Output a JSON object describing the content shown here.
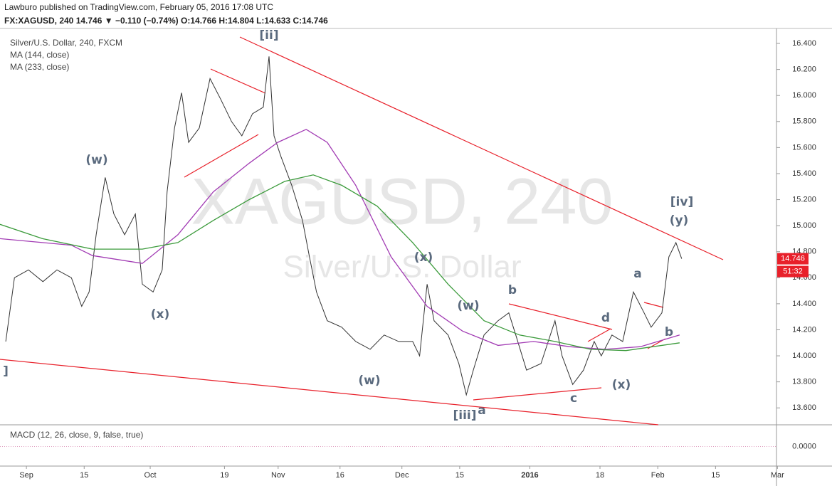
{
  "header": {
    "publisher": "Lawburo published on TradingView.com, February 05, 2016 17:08 UTC",
    "symbol_line": "FX:XAGUSD, 240  14.746 ▼ −0.110 (−0.74%)  O:14.766  H:14.804  L:14.633  C:14.746"
  },
  "chart_data": {
    "type": "line",
    "title": "Silver/U.S. Dollar, 240, FXCM",
    "watermark": [
      "XAGUSD, 240",
      "Silver/U.S. Dollar"
    ],
    "xlim": [
      -6.4,
      181.6
    ],
    "ylim": [
      13.47,
      16.515
    ],
    "grid": false,
    "xticks": [
      {
        "value": 0,
        "label": "Sep"
      },
      {
        "value": 14,
        "label": "15"
      },
      {
        "value": 30,
        "label": "Oct"
      },
      {
        "value": 48,
        "label": "19"
      },
      {
        "value": 61,
        "label": "Nov"
      },
      {
        "value": 76,
        "label": "16"
      },
      {
        "value": 91,
        "label": "Dec"
      },
      {
        "value": 105,
        "label": "15"
      },
      {
        "value": 122,
        "label": "2016"
      },
      {
        "value": 139,
        "label": "18"
      },
      {
        "value": 153,
        "label": "Feb"
      },
      {
        "value": 167,
        "label": "15"
      },
      {
        "value": 182,
        "label": "Mar"
      }
    ],
    "yticks": [
      {
        "value": 13.6,
        "label": "13.600"
      },
      {
        "value": 13.8,
        "label": "13.800"
      },
      {
        "value": 14.0,
        "label": "14.000"
      },
      {
        "value": 14.2,
        "label": "14.200"
      },
      {
        "value": 14.4,
        "label": "14.400"
      },
      {
        "value": 14.6,
        "label": "14.600"
      },
      {
        "value": 14.8,
        "label": "14.800"
      },
      {
        "value": 15.0,
        "label": "15.000"
      },
      {
        "value": 15.2,
        "label": "15.200"
      },
      {
        "value": 15.4,
        "label": "15.400"
      },
      {
        "value": 15.6,
        "label": "15.600"
      },
      {
        "value": 15.8,
        "label": "15.800"
      },
      {
        "value": 16.0,
        "label": "16.000"
      },
      {
        "value": 16.2,
        "label": "16.200"
      },
      {
        "value": 16.4,
        "label": "16.400"
      }
    ],
    "series": [
      {
        "name": "XAGUSD",
        "color": "#333333",
        "x": [
          -5.0,
          -2.9,
          0.5,
          4.0,
          7.4,
          10.9,
          13.4,
          15.2,
          16.9,
          19.1,
          21.2,
          23.8,
          26.4,
          28.1,
          30.7,
          32.9,
          34.1,
          35.9,
          37.6,
          39.3,
          41.9,
          44.5,
          47.1,
          49.7,
          52.2,
          54.8,
          57.4,
          58.8,
          60.0,
          61.7,
          64.3,
          66.9,
          68.6,
          70.3,
          72.9,
          76.4,
          79.8,
          83.3,
          86.7,
          90.2,
          93.6,
          95.3,
          97.1,
          98.8,
          102.2,
          104.8,
          106.6,
          108.3,
          110.9,
          114.3,
          116.9,
          118.6,
          121.2,
          124.7,
          128.1,
          129.8,
          132.4,
          135.0,
          137.6,
          139.3,
          141.9,
          144.5,
          147.1,
          149.7,
          151.4,
          154.0,
          155.7,
          157.4,
          158.8
        ],
        "values": [
          14.11,
          14.6,
          14.66,
          14.57,
          14.66,
          14.6,
          14.38,
          14.49,
          14.93,
          15.37,
          15.09,
          14.93,
          15.09,
          14.55,
          14.49,
          14.66,
          15.26,
          15.75,
          16.02,
          15.64,
          15.75,
          16.13,
          15.97,
          15.8,
          15.69,
          15.86,
          15.91,
          16.3,
          15.69,
          15.53,
          15.31,
          15.04,
          14.76,
          14.49,
          14.27,
          14.22,
          14.11,
          14.05,
          14.16,
          14.11,
          14.11,
          14.0,
          14.55,
          14.27,
          14.16,
          13.94,
          13.7,
          13.89,
          14.16,
          14.27,
          14.33,
          14.16,
          13.89,
          13.94,
          14.27,
          14.0,
          13.78,
          13.89,
          14.11,
          14.0,
          14.16,
          14.11,
          14.49,
          14.33,
          14.22,
          14.33,
          14.76,
          14.87,
          14.746
        ]
      },
      {
        "name": "MA (144, close)",
        "color": "#a23cb4",
        "x": [
          -6.4,
          10.9,
          16.0,
          28.1,
          36.7,
          45.3,
          54.0,
          60.9,
          67.8,
          72.9,
          79.8,
          88.4,
          97.1,
          105.7,
          114.3,
          122.9,
          131.6,
          140.2,
          148.8,
          158.3
        ],
        "values": [
          14.9,
          14.85,
          14.77,
          14.71,
          14.93,
          15.26,
          15.48,
          15.64,
          15.74,
          15.64,
          15.31,
          14.76,
          14.38,
          14.19,
          14.08,
          14.11,
          14.07,
          14.05,
          14.07,
          14.16
        ]
      },
      {
        "name": "MA (233, close)",
        "color": "#3c9b3c",
        "x": [
          -6.4,
          3.9,
          16.0,
          28.1,
          36.7,
          45.3,
          54.0,
          62.6,
          69.5,
          76.4,
          85.0,
          93.6,
          102.2,
          110.9,
          119.5,
          128.1,
          136.7,
          145.3,
          158.3
        ],
        "values": [
          15.01,
          14.9,
          14.82,
          14.82,
          14.87,
          15.04,
          15.2,
          15.34,
          15.39,
          15.31,
          15.15,
          14.87,
          14.55,
          14.27,
          14.16,
          14.11,
          14.05,
          14.04,
          14.1
        ]
      }
    ],
    "countdown": "51:32",
    "annotations": [
      "[ii]",
      "(w)",
      "(x)",
      "(x)",
      "(w)",
      "b",
      "(w)",
      "[iii]",
      "a",
      "c",
      "d",
      "(x)",
      "a",
      "b",
      "[iv]",
      "(y)",
      "]"
    ],
    "macd": {
      "label": "MACD (12, 26, close, 9, false, true)",
      "ylim": [
        -0.15,
        0.15
      ],
      "yticks": [
        {
          "value": 0,
          "label": "0.0000"
        }
      ]
    }
  }
}
